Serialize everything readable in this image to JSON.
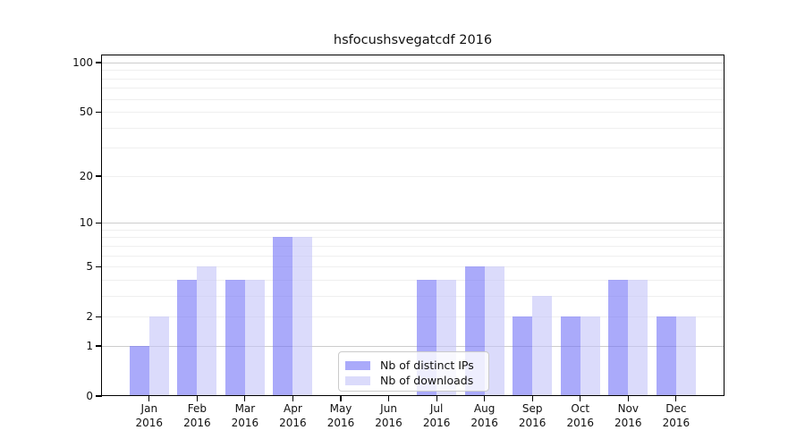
{
  "title": "hsfocushsvegatcdf 2016",
  "colors": {
    "ips_fill": "rgba(113,113,247,0.6)",
    "downloads_fill": "rgba(195,195,248,0.6)",
    "grid_major": "#cdcdcd",
    "grid_minor": "#efefef",
    "axis": "#000000",
    "text": "#111111",
    "legend_border": "#cbcbcb"
  },
  "legend": {
    "items": [
      {
        "label": "Nb of distinct IPs",
        "series": "ips"
      },
      {
        "label": "Nb of downloads",
        "series": "downloads"
      }
    ]
  },
  "chart_data": {
    "type": "bar",
    "title": "hsfocushsvegatcdf 2016",
    "categories": [
      "Jan 2016",
      "Feb 2016",
      "Mar 2016",
      "Apr 2016",
      "May 2016",
      "Jun 2016",
      "Jul 2016",
      "Aug 2016",
      "Sep 2016",
      "Oct 2016",
      "Nov 2016",
      "Dec 2016"
    ],
    "x_tick_line1": [
      "Jan",
      "Feb",
      "Mar",
      "Apr",
      "May",
      "Jun",
      "Jul",
      "Aug",
      "Sep",
      "Oct",
      "Nov",
      "Dec"
    ],
    "x_tick_line2": "2016",
    "series": [
      {
        "name": "Nb of distinct IPs",
        "values": [
          1,
          4,
          4,
          8,
          0,
          0,
          4,
          5,
          2,
          2,
          4,
          2
        ]
      },
      {
        "name": "Nb of downloads",
        "values": [
          2,
          5,
          4,
          8,
          0,
          0,
          4,
          5,
          3,
          2,
          4,
          2
        ]
      }
    ],
    "yscale": "symlog",
    "ylim": [
      0,
      100
    ],
    "y_ticks": [
      0,
      1,
      2,
      5,
      10,
      20,
      50,
      100
    ],
    "y_major_gridlines": [
      1,
      10,
      100
    ],
    "y_minor_gridlines": [
      2,
      3,
      4,
      5,
      6,
      7,
      8,
      9,
      20,
      30,
      40,
      50,
      60,
      70,
      80,
      90
    ],
    "grid": "horizontal",
    "legend_position": "inside-bottom-center"
  }
}
